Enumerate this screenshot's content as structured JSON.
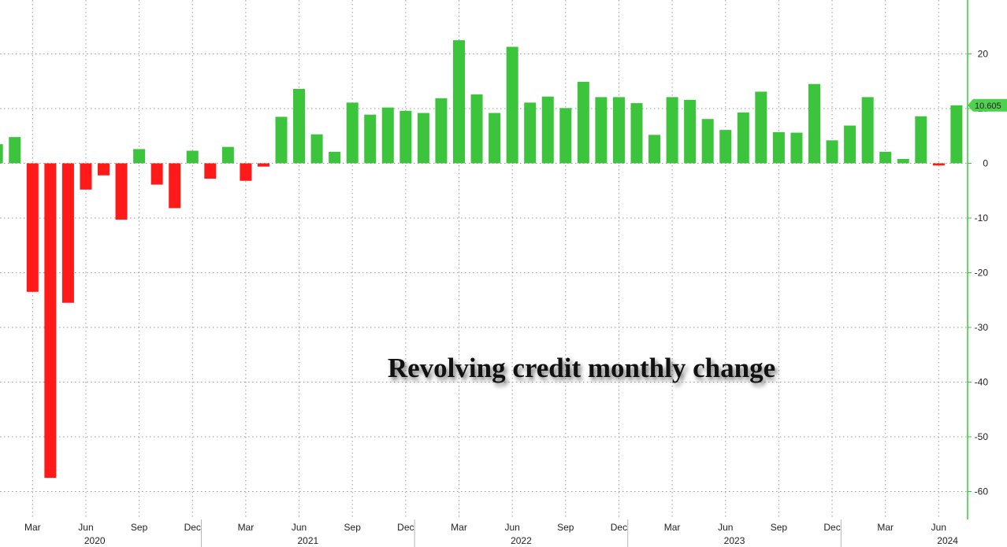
{
  "chart_data": {
    "type": "bar",
    "title": "Revolving credit  monthly change",
    "xlabel": "",
    "ylabel": "",
    "ylim": [
      -66,
      30
    ],
    "y_ticks": [
      20,
      10,
      0,
      -10,
      -20,
      -30,
      -40,
      -50,
      -60
    ],
    "grid": true,
    "positive_color": "#3dc43d",
    "negative_color": "#ff1a1a",
    "axis_color": "#33cc33",
    "last_value_label": "10.605",
    "month_tick_labels": [
      "Mar",
      "Jun",
      "Sep",
      "Dec",
      "Mar",
      "Jun",
      "Sep",
      "Dec",
      "Mar",
      "Jun",
      "Sep",
      "Dec",
      "Mar",
      "Jun",
      "Sep",
      "Dec",
      "Mar",
      "Jun"
    ],
    "year_labels": [
      "2020",
      "2021",
      "2022",
      "2023",
      "2024"
    ],
    "categories": [
      "2020-01",
      "2020-02",
      "2020-03",
      "2020-04",
      "2020-05",
      "2020-06",
      "2020-07",
      "2020-08",
      "2020-09",
      "2020-10",
      "2020-11",
      "2020-12",
      "2021-01",
      "2021-02",
      "2021-03",
      "2021-04",
      "2021-05",
      "2021-06",
      "2021-07",
      "2021-08",
      "2021-09",
      "2021-10",
      "2021-11",
      "2021-12",
      "2022-01",
      "2022-02",
      "2022-03",
      "2022-04",
      "2022-05",
      "2022-06",
      "2022-07",
      "2022-08",
      "2022-09",
      "2022-10",
      "2022-11",
      "2022-12",
      "2023-01",
      "2023-02",
      "2023-03",
      "2023-04",
      "2023-05",
      "2023-06",
      "2023-07",
      "2023-08",
      "2023-09",
      "2023-10",
      "2023-11",
      "2023-12",
      "2024-01",
      "2024-02",
      "2024-03",
      "2024-04",
      "2024-05",
      "2024-06",
      "2024-07"
    ],
    "values": [
      3.5,
      4.8,
      -23.5,
      -57.5,
      -25.5,
      -4.8,
      -2.2,
      -10.3,
      2.6,
      -3.9,
      -8.2,
      2.3,
      -2.8,
      3.0,
      -3.2,
      -0.6,
      8.5,
      13.6,
      5.3,
      2.1,
      11.1,
      8.9,
      10.2,
      9.6,
      9.2,
      11.9,
      22.5,
      12.6,
      9.2,
      21.3,
      11.1,
      12.2,
      10.1,
      14.9,
      12.1,
      12.1,
      11.0,
      5.2,
      12.1,
      11.6,
      8.1,
      6.1,
      9.3,
      13.1,
      5.7,
      5.6,
      14.5,
      4.2,
      6.9,
      12.1,
      2.1,
      0.8,
      8.6,
      -0.4,
      10.605
    ]
  }
}
